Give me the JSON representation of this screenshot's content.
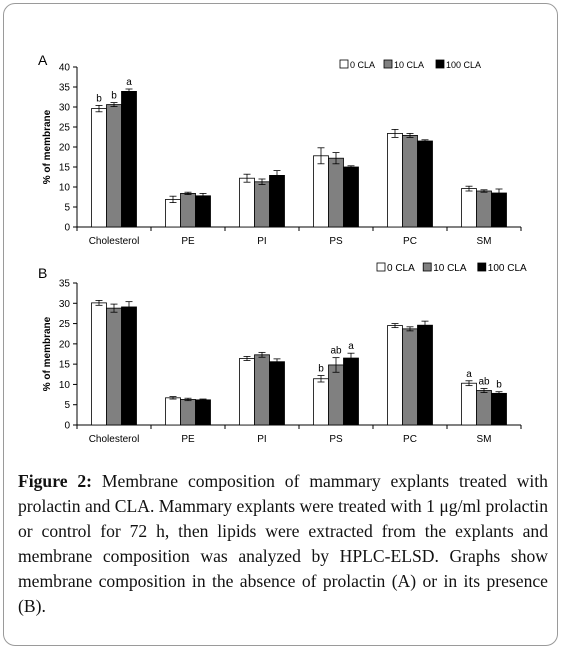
{
  "figure": {
    "caption_label": "Figure 2:",
    "caption_text": " Membrane composition of mammary explants treated with prolactin and CLA. Mammary explants were treated with 1 μg/ml prolactin or control for 72 h, then lipids were extracted from the explants and membrane composition was analyzed by HPLC-ELSD. Graphs show membrane composition in the absence of prolactin (A) or in its presence (B)."
  },
  "colors": {
    "s0": "#ffffff",
    "s1": "#808080",
    "s2": "#000000"
  },
  "chart_data": [
    {
      "type": "bar",
      "panel_label": "A",
      "categories": [
        "Cholesterol",
        "PE",
        "PI",
        "PS",
        "PC",
        "SM"
      ],
      "ylabel": "% of membrane",
      "ylim": [
        0,
        40
      ],
      "yticks": [
        0,
        5,
        10,
        15,
        20,
        25,
        30,
        35,
        40
      ],
      "legend": "top-right",
      "series": [
        {
          "name": "0 CLA",
          "values": [
            29.6,
            6.9,
            12.2,
            17.8,
            23.4,
            9.6
          ],
          "errors": [
            0.8,
            0.8,
            1.0,
            2.0,
            1.0,
            0.6
          ],
          "labels": [
            "b",
            "",
            "",
            "",
            "",
            ""
          ]
        },
        {
          "name": "10 CLA",
          "values": [
            30.6,
            8.4,
            11.3,
            17.2,
            22.9,
            9.0
          ],
          "errors": [
            0.5,
            0.3,
            0.7,
            1.4,
            0.5,
            0.3
          ],
          "labels": [
            "b",
            "",
            "",
            "",
            "",
            ""
          ]
        },
        {
          "name": "100 CLA",
          "values": [
            33.9,
            7.8,
            12.9,
            15.0,
            21.5,
            8.5
          ],
          "errors": [
            0.6,
            0.6,
            1.2,
            0.3,
            0.3,
            1.0
          ],
          "labels": [
            "a",
            "",
            "",
            "",
            "",
            ""
          ]
        }
      ]
    },
    {
      "type": "bar",
      "panel_label": "B",
      "categories": [
        "Cholesterol",
        "PE",
        "PI",
        "PS",
        "PC",
        "SM"
      ],
      "ylabel": "% of membrane",
      "ylim": [
        0,
        35
      ],
      "yticks": [
        0,
        5,
        10,
        15,
        20,
        25,
        30,
        35
      ],
      "legend": "top-right",
      "series": [
        {
          "name": "0 CLA",
          "values": [
            30.1,
            6.7,
            16.4,
            11.4,
            24.5,
            10.3
          ],
          "errors": [
            0.6,
            0.3,
            0.5,
            0.8,
            0.5,
            0.6
          ],
          "labels": [
            "",
            "",
            "",
            "b",
            "",
            "a"
          ]
        },
        {
          "name": "10 CLA",
          "values": [
            28.8,
            6.3,
            17.3,
            14.8,
            23.7,
            8.5
          ],
          "errors": [
            1.0,
            0.3,
            0.6,
            1.8,
            0.5,
            0.5
          ],
          "labels": [
            "",
            "",
            "",
            "ab",
            "",
            "ab"
          ]
        },
        {
          "name": "100 CLA",
          "values": [
            29.1,
            6.2,
            15.6,
            16.5,
            24.6,
            7.8
          ],
          "errors": [
            1.3,
            0.2,
            0.7,
            1.2,
            1.0,
            0.4
          ],
          "labels": [
            "",
            "",
            "",
            "a",
            "",
            "b"
          ]
        }
      ]
    }
  ]
}
